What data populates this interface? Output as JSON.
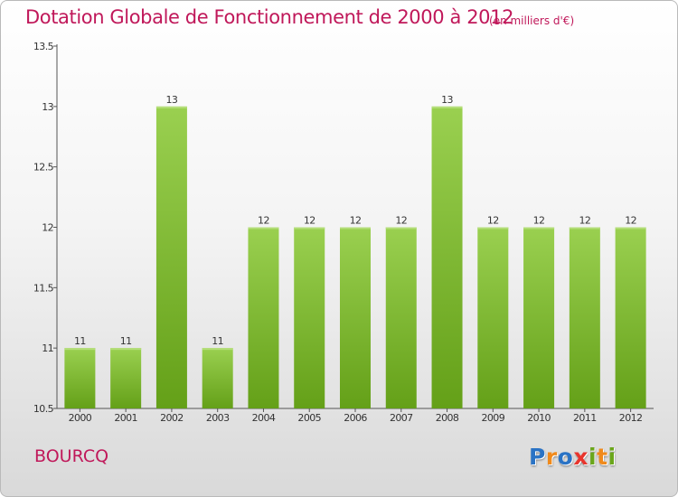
{
  "title": "Dotation Globale de Fonctionnement de 2000 à 2012",
  "unit": "(en milliers d'€)",
  "commune": "BOURCQ",
  "logo": {
    "text": "Proxiti",
    "letters": [
      {
        "ch": "P",
        "color": "#2a73c5"
      },
      {
        "ch": "r",
        "color": "#f08a1c"
      },
      {
        "ch": "o",
        "color": "#2a73c5"
      },
      {
        "ch": "x",
        "color": "#e8352d"
      },
      {
        "ch": "i",
        "color": "#6aa61b"
      },
      {
        "ch": "t",
        "color": "#f08a1c"
      },
      {
        "ch": "i",
        "color": "#6aa61b"
      }
    ]
  },
  "chart_data": {
    "type": "bar",
    "categories": [
      "2000",
      "2001",
      "2002",
      "2003",
      "2004",
      "2005",
      "2006",
      "2007",
      "2008",
      "2009",
      "2010",
      "2011",
      "2012"
    ],
    "values": [
      11,
      11,
      13,
      11,
      12,
      12,
      12,
      12,
      13,
      12,
      12,
      12,
      12
    ],
    "data_labels": [
      "11",
      "11",
      "13",
      "11",
      "12",
      "12",
      "12",
      "12",
      "13",
      "12",
      "12",
      "12",
      "12"
    ],
    "ylim": [
      10.5,
      13.5
    ],
    "yticks": [
      10.5,
      11,
      11.5,
      12,
      12.5,
      13,
      13.5
    ],
    "ytick_labels": [
      "10.5",
      "11",
      "11.5",
      "12",
      "12.5",
      "13",
      "13.5"
    ],
    "grid": false,
    "bar_color": "#8bc63e"
  }
}
